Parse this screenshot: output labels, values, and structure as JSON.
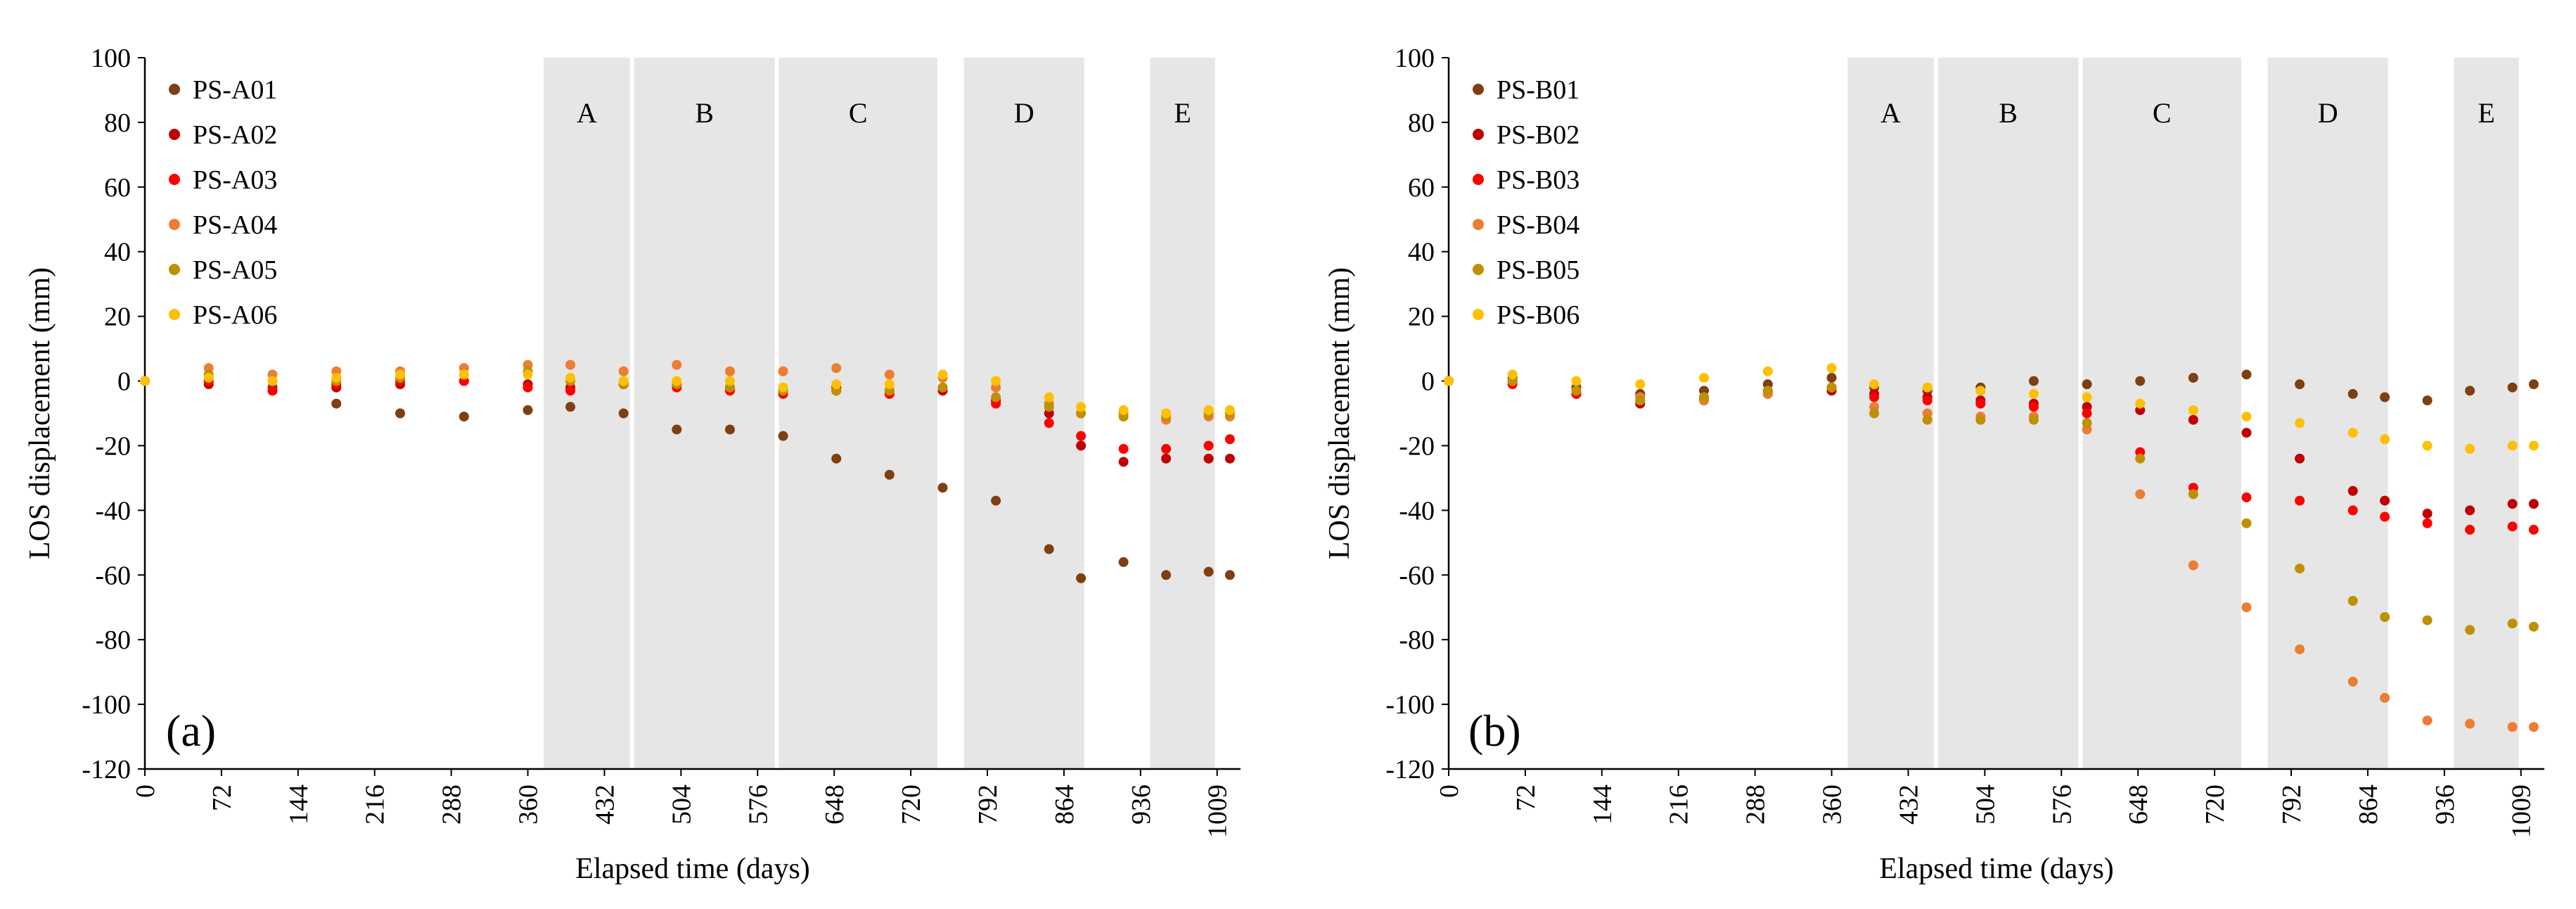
{
  "figure": {
    "panels": [
      {
        "panel_label": "(a)",
        "xlabel": "Elapsed time (days)",
        "ylabel": "LOS displacement (mm)",
        "ylim": [
          -120,
          100
        ],
        "yticks": [
          "100",
          "80",
          "60",
          "40",
          "20",
          "0",
          "-20",
          "-40",
          "-60",
          "-80",
          "-100",
          "-120"
        ],
        "xticks": [
          "0",
          "72",
          "144",
          "216",
          "288",
          "360",
          "432",
          "504",
          "576",
          "648",
          "720",
          "792",
          "864",
          "936",
          "1009"
        ],
        "shaded_periods": [
          {
            "label": "A",
            "start": 375,
            "end": 456
          },
          {
            "label": "B",
            "start": 460,
            "end": 592
          },
          {
            "label": "C",
            "start": 596,
            "end": 745
          },
          {
            "label": "D",
            "start": 770,
            "end": 883
          },
          {
            "label": "E",
            "start": 945,
            "end": 1006
          }
        ],
        "legend": [
          "PS-A01",
          "PS-A02",
          "PS-A03",
          "PS-A04",
          "PS-A05",
          "PS-A06"
        ]
      },
      {
        "panel_label": "(b)",
        "xlabel": "Elapsed time (days)",
        "ylabel": "LOS displacement (mm)",
        "ylim": [
          -120,
          100
        ],
        "yticks": [
          "100",
          "80",
          "60",
          "40",
          "20",
          "0",
          "-20",
          "-40",
          "-60",
          "-80",
          "-100",
          "-120"
        ],
        "xticks": [
          "0",
          "72",
          "144",
          "216",
          "288",
          "360",
          "432",
          "504",
          "576",
          "648",
          "720",
          "792",
          "864",
          "936",
          "1009"
        ],
        "shaded_periods": [
          {
            "label": "A",
            "start": 375,
            "end": 456
          },
          {
            "label": "B",
            "start": 460,
            "end": 592
          },
          {
            "label": "C",
            "start": 596,
            "end": 745
          },
          {
            "label": "D",
            "start": 770,
            "end": 883
          },
          {
            "label": "E",
            "start": 945,
            "end": 1006
          }
        ],
        "legend": [
          "PS-B01",
          "PS-B02",
          "PS-B03",
          "PS-B04",
          "PS-B05",
          "PS-B06"
        ]
      }
    ]
  },
  "chart_data": [
    {
      "type": "scatter",
      "title": "",
      "panel": "(a)",
      "xlabel": "Elapsed time (days)",
      "ylabel": "LOS displacement (mm)",
      "xlim": [
        0,
        1030
      ],
      "ylim": [
        -120,
        100
      ],
      "grid": false,
      "legend_position": "top-left",
      "series": [
        {
          "name": "PS-A01",
          "color": "#7f3f11",
          "x": [
            0,
            60,
            120,
            180,
            240,
            300,
            360,
            400,
            450,
            500,
            550,
            600,
            650,
            700,
            750,
            800,
            850,
            880,
            920,
            960,
            1000,
            1020
          ],
          "y": [
            0,
            0,
            -2,
            -7,
            -10,
            -11,
            -9,
            -8,
            -10,
            -15,
            -15,
            -17,
            -24,
            -29,
            -33,
            -37,
            -52,
            -61,
            -56,
            -60,
            -59,
            -60
          ]
        },
        {
          "name": "PS-A02",
          "color": "#c00000",
          "x": [
            0,
            60,
            120,
            180,
            240,
            300,
            360,
            400,
            450,
            500,
            550,
            600,
            650,
            700,
            750,
            800,
            850,
            880,
            920,
            960,
            1000,
            1020
          ],
          "y": [
            0,
            -1,
            -3,
            -2,
            -1,
            0,
            -1,
            -2,
            -1,
            -1,
            -2,
            -3,
            -2,
            -3,
            -3,
            -6,
            -10,
            -20,
            -25,
            -24,
            -24,
            -24
          ]
        },
        {
          "name": "PS-A03",
          "color": "#ff0000",
          "x": [
            0,
            60,
            120,
            180,
            240,
            300,
            360,
            400,
            450,
            500,
            550,
            600,
            650,
            700,
            750,
            800,
            850,
            880,
            920,
            960,
            1000,
            1020
          ],
          "y": [
            0,
            0,
            -3,
            -1,
            0,
            0,
            -2,
            -3,
            -1,
            -2,
            -3,
            -4,
            -3,
            -4,
            -2,
            -7,
            -13,
            -17,
            -21,
            -21,
            -20,
            -18
          ]
        },
        {
          "name": "PS-A04",
          "color": "#ed7d31",
          "x": [
            0,
            60,
            120,
            180,
            240,
            300,
            360,
            400,
            450,
            500,
            550,
            600,
            650,
            700,
            750,
            800,
            850,
            880,
            920,
            960,
            1000,
            1020
          ],
          "y": [
            0,
            4,
            2,
            3,
            3,
            4,
            5,
            5,
            3,
            5,
            3,
            3,
            4,
            2,
            1,
            -2,
            -7,
            -10,
            -10,
            -12,
            -11,
            -11
          ]
        },
        {
          "name": "PS-A05",
          "color": "#bf9000",
          "x": [
            0,
            60,
            120,
            180,
            240,
            300,
            360,
            400,
            450,
            500,
            550,
            600,
            650,
            700,
            750,
            800,
            850,
            880,
            920,
            960,
            1000,
            1020
          ],
          "y": [
            0,
            2,
            0,
            0,
            1,
            2,
            3,
            0,
            -1,
            -1,
            -2,
            -3,
            -3,
            -3,
            -2,
            -5,
            -8,
            -10,
            -11,
            -11,
            -10,
            -10
          ]
        },
        {
          "name": "PS-A06",
          "color": "#ffc000",
          "x": [
            0,
            60,
            120,
            180,
            240,
            300,
            360,
            400,
            450,
            500,
            550,
            600,
            650,
            700,
            750,
            800,
            850,
            880,
            920,
            960,
            1000,
            1020
          ],
          "y": [
            0,
            1,
            0,
            1,
            2,
            2,
            2,
            1,
            0,
            0,
            0,
            -2,
            -1,
            -1,
            2,
            0,
            -5,
            -8,
            -9,
            -10,
            -9,
            -9
          ]
        }
      ]
    },
    {
      "type": "scatter",
      "title": "",
      "panel": "(b)",
      "xlabel": "Elapsed time (days)",
      "ylabel": "LOS displacement (mm)",
      "xlim": [
        0,
        1030
      ],
      "ylim": [
        -120,
        100
      ],
      "grid": false,
      "legend_position": "top-left",
      "series": [
        {
          "name": "PS-B01",
          "color": "#7f3f11",
          "x": [
            0,
            60,
            120,
            180,
            240,
            300,
            360,
            400,
            450,
            500,
            550,
            600,
            650,
            700,
            750,
            800,
            850,
            880,
            920,
            960,
            1000,
            1020
          ],
          "y": [
            0,
            1,
            -2,
            -4,
            -3,
            -1,
            1,
            -2,
            -3,
            -2,
            0,
            -1,
            0,
            1,
            2,
            -1,
            -4,
            -5,
            -6,
            -3,
            -2,
            -1
          ]
        },
        {
          "name": "PS-B02",
          "color": "#c00000",
          "x": [
            0,
            60,
            120,
            180,
            240,
            300,
            360,
            400,
            450,
            500,
            550,
            600,
            650,
            700,
            750,
            800,
            850,
            880,
            920,
            960,
            1000,
            1020
          ],
          "y": [
            0,
            0,
            -4,
            -7,
            -6,
            -4,
            -3,
            -4,
            -5,
            -6,
            -7,
            -8,
            -9,
            -12,
            -16,
            -24,
            -34,
            -37,
            -41,
            -40,
            -38,
            -38
          ]
        },
        {
          "name": "PS-B03",
          "color": "#ff0000",
          "x": [
            0,
            60,
            120,
            180,
            240,
            300,
            360,
            400,
            450,
            500,
            550,
            600,
            650,
            700,
            750,
            800,
            850,
            880,
            920,
            960,
            1000,
            1020
          ],
          "y": [
            0,
            -1,
            -4,
            -6,
            -5,
            -3,
            -2,
            -5,
            -6,
            -7,
            -8,
            -10,
            -22,
            -33,
            -36,
            -37,
            -40,
            -42,
            -44,
            -46,
            -45,
            -46
          ]
        },
        {
          "name": "PS-B04",
          "color": "#ed7d31",
          "x": [
            0,
            60,
            120,
            180,
            240,
            300,
            360,
            400,
            450,
            500,
            550,
            600,
            650,
            700,
            750,
            800,
            850,
            880,
            920,
            960,
            1000,
            1020
          ],
          "y": [
            0,
            0,
            -3,
            -5,
            -6,
            -4,
            -2,
            -8,
            -10,
            -11,
            -11,
            -15,
            -35,
            -57,
            -70,
            -83,
            -93,
            -98,
            -105,
            -106,
            -107,
            -107
          ]
        },
        {
          "name": "PS-B05",
          "color": "#bf9000",
          "x": [
            0,
            60,
            120,
            180,
            240,
            300,
            360,
            400,
            450,
            500,
            550,
            600,
            650,
            700,
            750,
            800,
            850,
            880,
            920,
            960,
            1000,
            1020
          ],
          "y": [
            0,
            0,
            -3,
            -6,
            -5,
            -3,
            -2,
            -10,
            -12,
            -12,
            -12,
            -13,
            -24,
            -35,
            -44,
            -58,
            -68,
            -73,
            -74,
            -77,
            -75,
            -76
          ]
        },
        {
          "name": "PS-B06",
          "color": "#ffc000",
          "x": [
            0,
            60,
            120,
            180,
            240,
            300,
            360,
            400,
            450,
            500,
            550,
            600,
            650,
            700,
            750,
            800,
            850,
            880,
            920,
            960,
            1000,
            1020
          ],
          "y": [
            0,
            2,
            0,
            -1,
            1,
            3,
            4,
            -1,
            -2,
            -3,
            -4,
            -5,
            -7,
            -9,
            -11,
            -13,
            -16,
            -18,
            -20,
            -21,
            -20,
            -20
          ]
        }
      ]
    }
  ]
}
